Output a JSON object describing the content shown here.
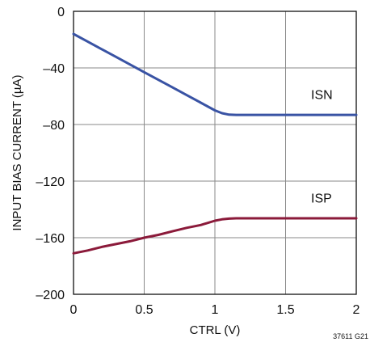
{
  "chart_data": {
    "type": "line",
    "xlabel": "CTRL (V)",
    "ylabel": "INPUT BIAS CURRENT (µA)",
    "xlim": [
      0,
      2
    ],
    "ylim": [
      -200,
      0
    ],
    "x_ticks": [
      0,
      0.5,
      1,
      1.5,
      2
    ],
    "x_tick_labels": [
      "0",
      "0.5",
      "1",
      "1.5",
      "2"
    ],
    "y_ticks": [
      0,
      -40,
      -80,
      -120,
      -160,
      -200
    ],
    "y_tick_labels": [
      "0",
      "–40",
      "–80",
      "–120",
      "–160",
      "–200"
    ],
    "grid": true,
    "legend": "none",
    "figure_id": "37611 G21",
    "series": [
      {
        "name": "ISN",
        "color": "#3953a4",
        "x": [
          0,
          0.1,
          0.2,
          0.3,
          0.4,
          0.5,
          0.6,
          0.7,
          0.8,
          0.9,
          1.0,
          1.05,
          1.1,
          1.15,
          1.2,
          1.3,
          1.5,
          1.7,
          2.0
        ],
        "y": [
          -16,
          -21.4,
          -26.8,
          -32.2,
          -37.6,
          -43,
          -48.4,
          -53.8,
          -59.2,
          -64.6,
          -70,
          -72,
          -73,
          -73.2,
          -73.2,
          -73.2,
          -73.2,
          -73.2,
          -73.2
        ]
      },
      {
        "name": "ISP",
        "color": "#8b1a3a",
        "x": [
          0,
          0.1,
          0.2,
          0.3,
          0.4,
          0.5,
          0.6,
          0.7,
          0.8,
          0.9,
          1.0,
          1.05,
          1.1,
          1.15,
          1.2,
          1.3,
          1.5,
          1.7,
          2.0
        ],
        "y": [
          -171,
          -169,
          -166.5,
          -164.5,
          -162.5,
          -160,
          -158,
          -155.5,
          -153,
          -151,
          -148,
          -147,
          -146.5,
          -146.3,
          -146.3,
          -146.3,
          -146.3,
          -146.3,
          -146.3
        ]
      }
    ],
    "annotations": [
      {
        "text": "ISN",
        "x": 1.68,
        "y": -62
      },
      {
        "text": "ISP",
        "x": 1.68,
        "y": -135
      }
    ]
  }
}
